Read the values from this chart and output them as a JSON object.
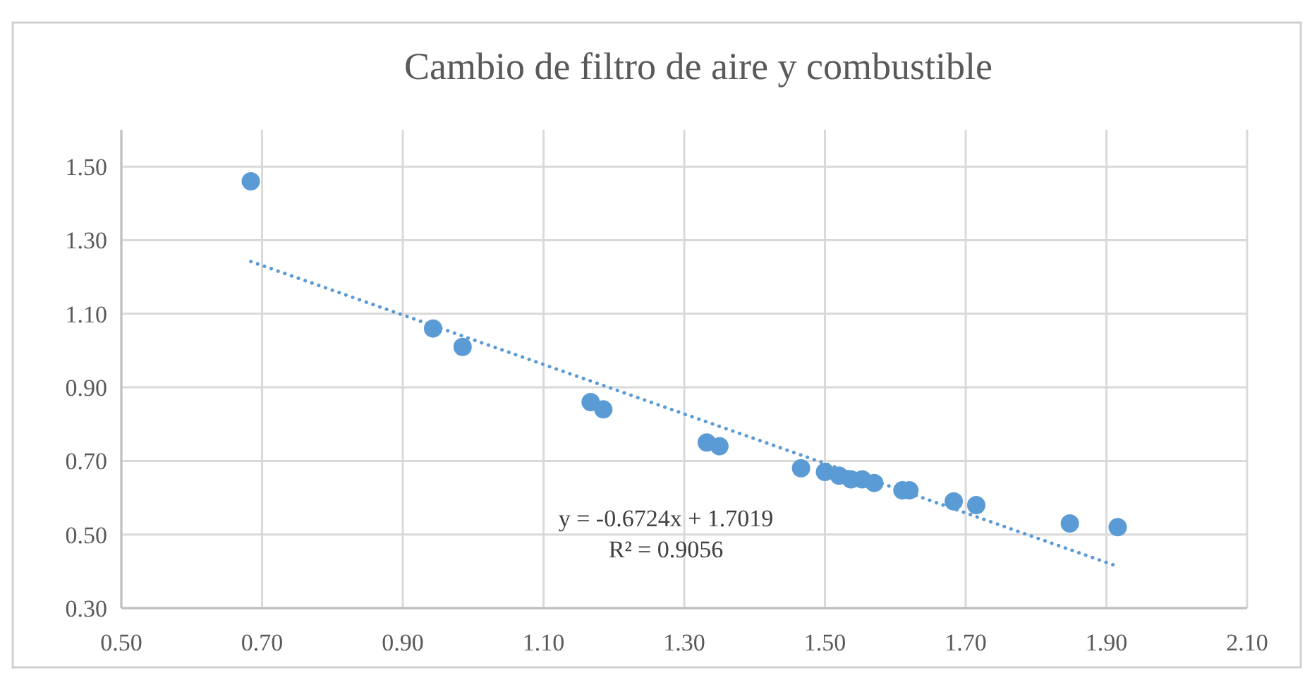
{
  "chart_data": {
    "type": "scatter",
    "title": "Cambio de filtro de aire y combustible",
    "xlim": [
      0.5,
      2.1
    ],
    "ylim": [
      0.3,
      1.6
    ],
    "xticks": [
      {
        "value": 0.5,
        "label": "0.50"
      },
      {
        "value": 0.7,
        "label": "0.70"
      },
      {
        "value": 0.9,
        "label": "0.90"
      },
      {
        "value": 1.1,
        "label": "1.10"
      },
      {
        "value": 1.3,
        "label": "1.30"
      },
      {
        "value": 1.5,
        "label": "1.50"
      },
      {
        "value": 1.7,
        "label": "1.70"
      },
      {
        "value": 1.9,
        "label": "1.90"
      },
      {
        "value": 2.1,
        "label": "2.10"
      }
    ],
    "yticks": [
      {
        "value": 0.3,
        "label": "0.30"
      },
      {
        "value": 0.5,
        "label": "0.50"
      },
      {
        "value": 0.7,
        "label": "0.70"
      },
      {
        "value": 0.9,
        "label": "0.90"
      },
      {
        "value": 1.1,
        "label": "1.10"
      },
      {
        "value": 1.3,
        "label": "1.30"
      },
      {
        "value": 1.5,
        "label": "1.50"
      }
    ],
    "grid": true,
    "series": [
      {
        "marker": "circle",
        "color": "#5b9bd5",
        "x": [
          0.684,
          0.943,
          0.985,
          1.167,
          1.185,
          1.332,
          1.35,
          1.466,
          1.5,
          1.52,
          1.537,
          1.553,
          1.57,
          1.61,
          1.62,
          1.683,
          1.715,
          1.848,
          1.916
        ],
        "values": [
          1.46,
          1.06,
          1.01,
          0.86,
          0.84,
          0.75,
          0.74,
          0.68,
          0.67,
          0.66,
          0.65,
          0.65,
          0.64,
          0.62,
          0.62,
          0.59,
          0.58,
          0.53,
          0.52
        ]
      },
      {
        "type": "line",
        "color": "#5b9bd5",
        "line_style": "dotted",
        "x": [
          0.684,
          1.915
        ],
        "values": [
          1.242,
          0.414
        ]
      }
    ],
    "annotations": [
      "y = -0.6724x + 1.7019",
      "R² = 0.9056"
    ]
  }
}
